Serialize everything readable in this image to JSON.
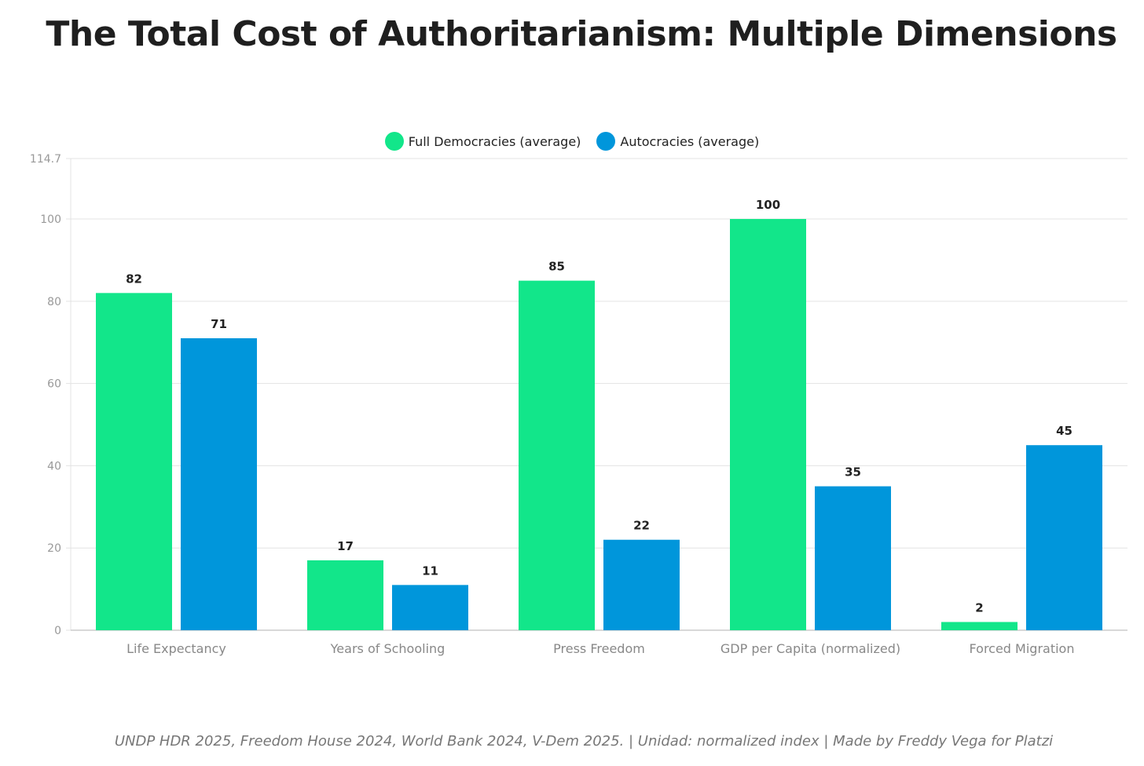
{
  "chart_data": {
    "type": "bar",
    "title": "The Total Cost of Authoritarianism: Multiple Dimensions",
    "categories": [
      "Life Expectancy",
      "Years of Schooling",
      "Press Freedom",
      "GDP per Capita (normalized)",
      "Forced Migration"
    ],
    "series": [
      {
        "name": "Full Democracies (average)",
        "color": "#12E68A",
        "values": [
          82,
          17,
          85,
          100,
          2
        ]
      },
      {
        "name": "Autocracies (average)",
        "color": "#0096DB",
        "values": [
          71,
          11,
          22,
          35,
          45
        ]
      }
    ],
    "yticks": [
      0,
      20,
      40,
      60,
      80,
      100,
      114.7
    ],
    "ylim": [
      0,
      114.7
    ],
    "xlabel": "",
    "ylabel": "",
    "grid": true,
    "legend": "top-center",
    "footer": "UNDP HDR 2025, Freedom House 2024, World Bank 2024, V-Dem 2025. | Unidad: normalized index | Made by Freddy Vega for Platzi"
  }
}
